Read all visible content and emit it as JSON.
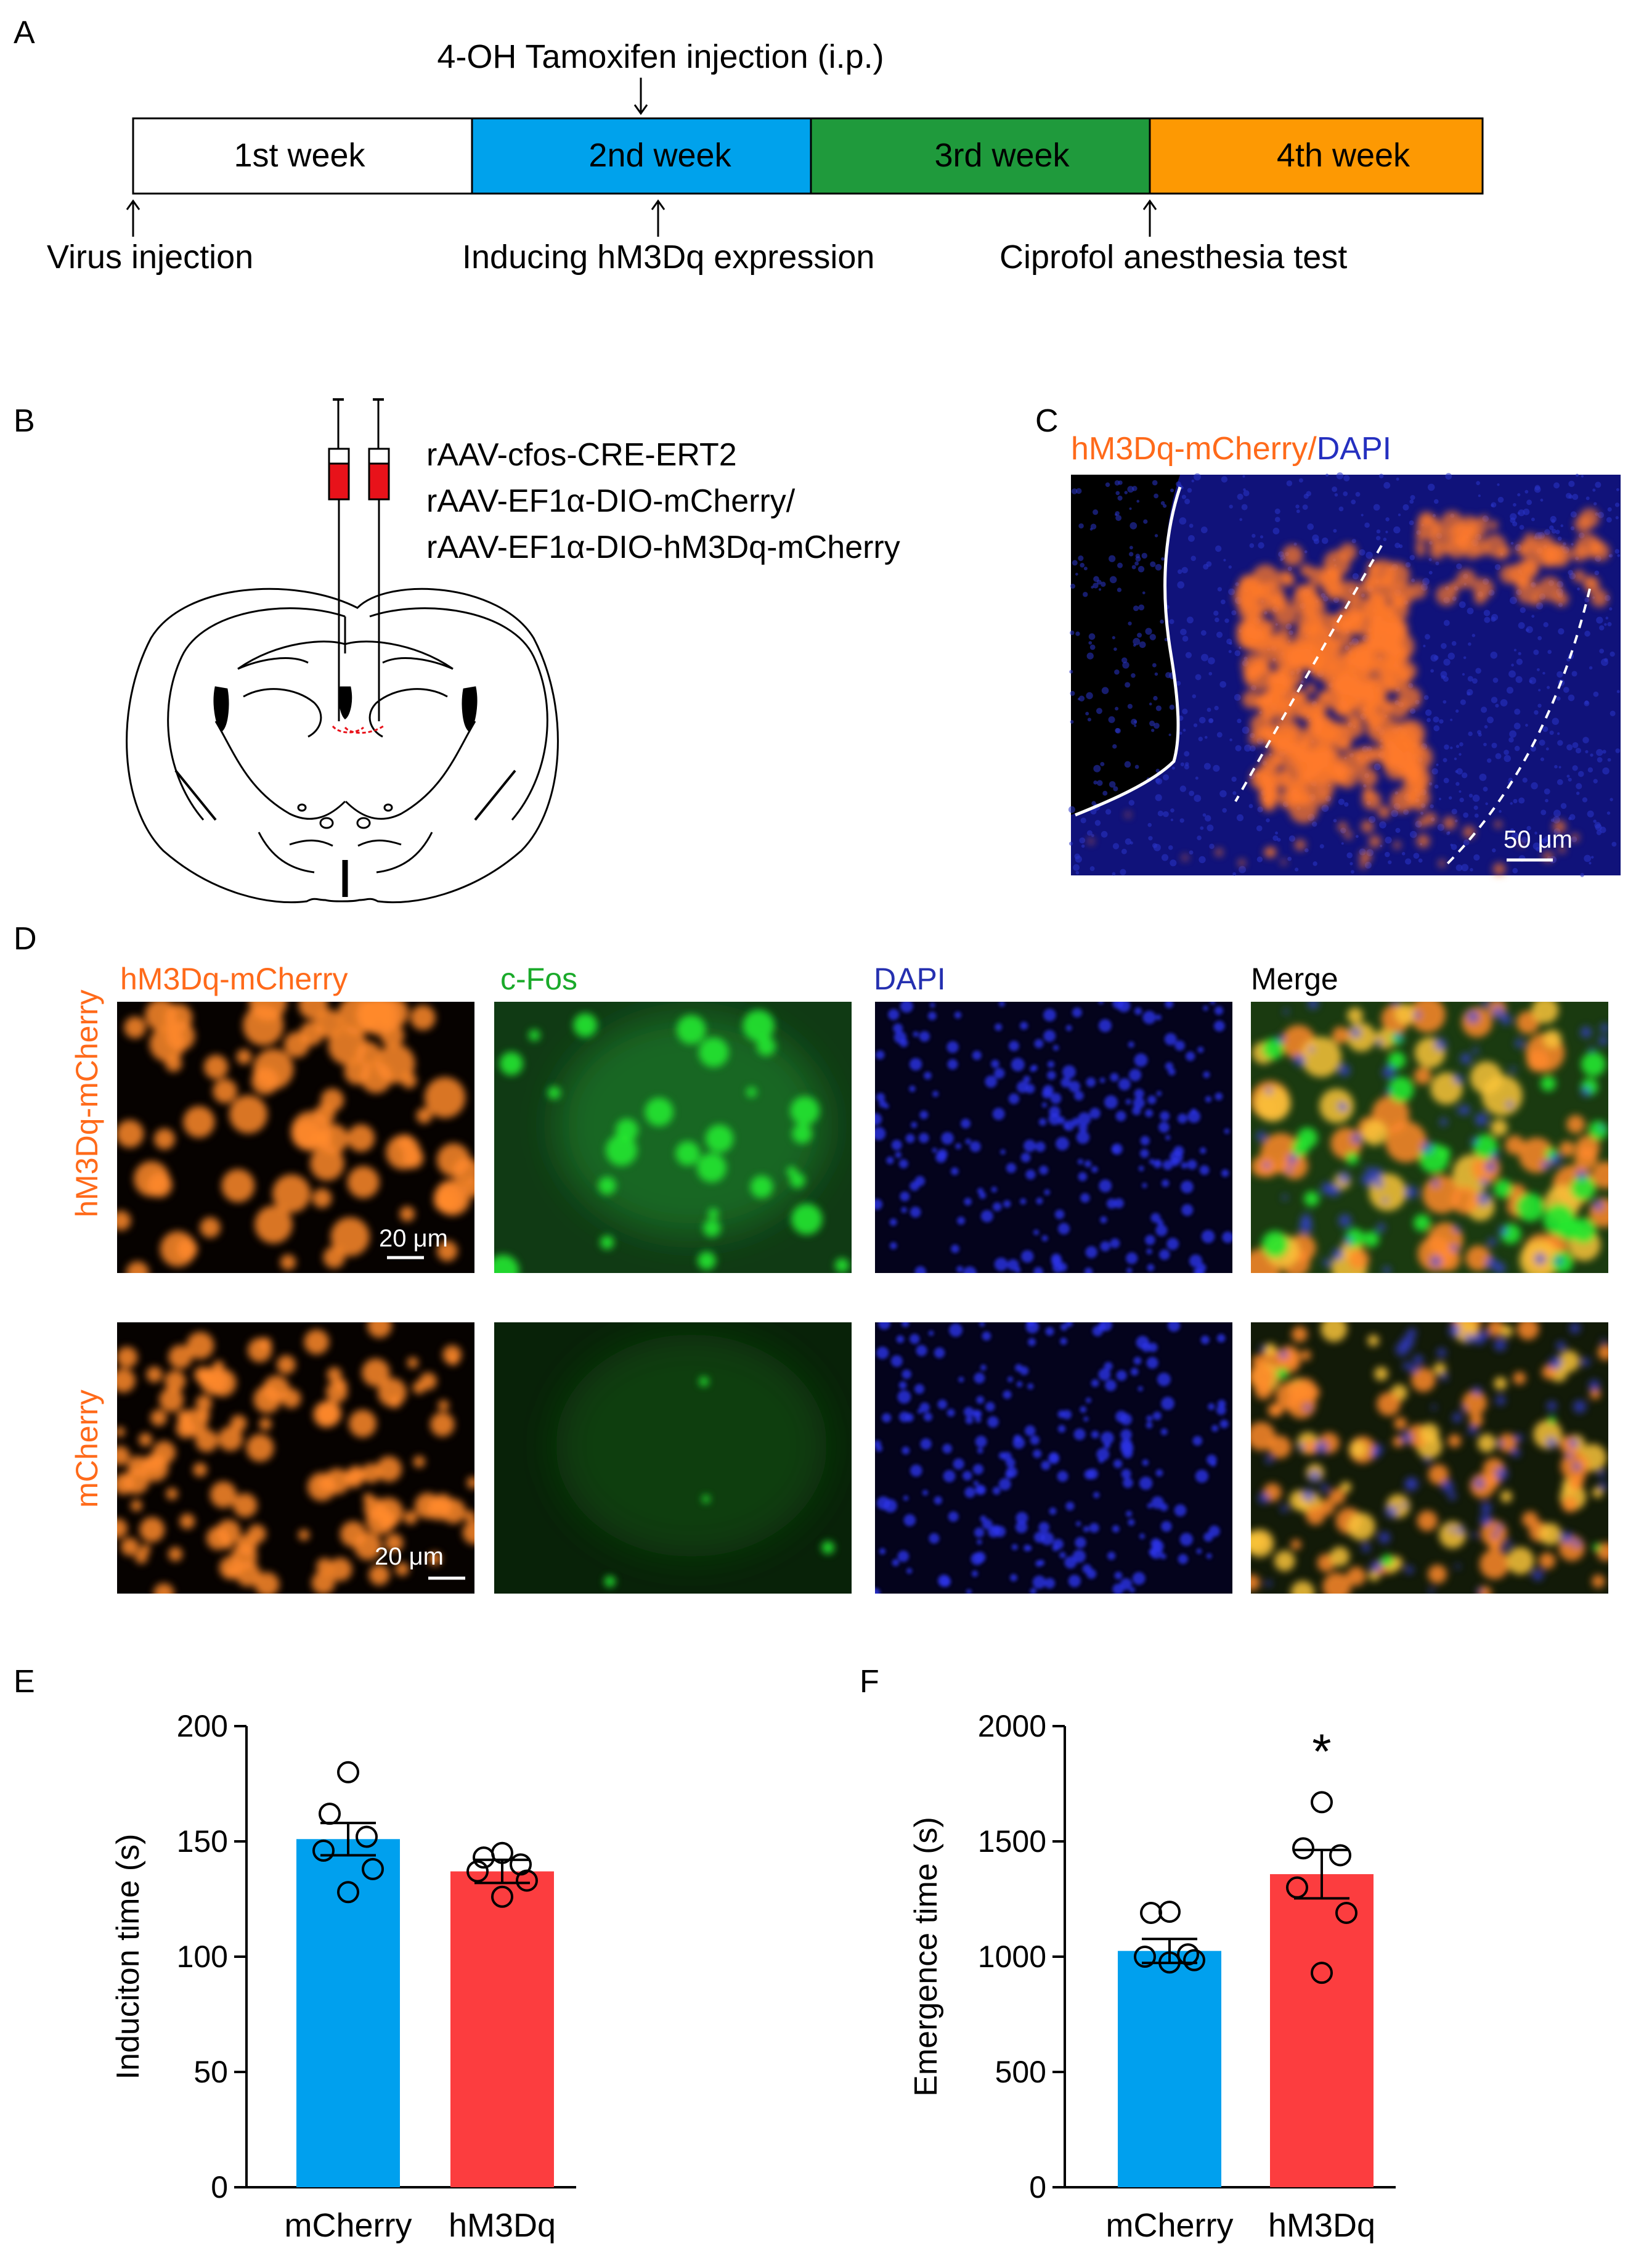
{
  "panels": {
    "A": "A",
    "B": "B",
    "C": "C",
    "D": "D",
    "E": "E",
    "F": "F"
  },
  "timeline": {
    "weeks": [
      "1st week",
      "2nd week",
      "3rd week",
      "4th week"
    ],
    "week_colors": [
      "#ffffff",
      "#00a2ec",
      "#1f9a3c",
      "#fd9903"
    ],
    "top_annotation": "4-OH Tamoxifen injection (i.p.)",
    "bottom_annotations": [
      "Virus injection",
      "Inducing hM3Dq expression",
      "Ciprofol anesthesia test"
    ]
  },
  "injection": {
    "lines": [
      "rAAV-cfos-CRE-ERT2",
      "rAAV-EF1α-DIO-mCherry/",
      "rAAV-EF1α-DIO-hM3Dq-mCherry"
    ]
  },
  "panel_c": {
    "label_orange": "hM3Dq-mCherry",
    "label_slash": "/",
    "label_blue": "DAPI",
    "scale_bar": "50 μm"
  },
  "panel_d": {
    "columns": [
      "hM3Dq-mCherry",
      "c-Fos",
      "DAPI",
      "Merge"
    ],
    "column_colors": [
      "#ff6a1a",
      "#1aaa2a",
      "#2530b0",
      "#000000"
    ],
    "rows": [
      "hM3Dq-mCherry",
      "mCherry"
    ],
    "scale_bar": "20 μm"
  },
  "colors": {
    "mcherry_bar": "#00a0ee",
    "hm3dq_bar": "#fc3d3f",
    "orange_label": "#ff6a1a"
  },
  "chart_data": [
    {
      "type": "bar",
      "panel": "E",
      "categories": [
        "mCherry",
        "hM3Dq"
      ],
      "values": [
        151,
        137
      ],
      "sem": [
        7,
        5
      ],
      "points": [
        [
          180,
          162,
          152,
          146,
          138,
          128
        ],
        [
          145,
          143,
          140,
          137,
          133,
          126
        ]
      ],
      "ylabel": "Induciton time (s)",
      "ylim": [
        0,
        200
      ],
      "yticks": [
        0,
        50,
        100,
        150,
        200
      ],
      "significance": ""
    },
    {
      "type": "bar",
      "panel": "F",
      "categories": [
        "mCherry",
        "hM3Dq"
      ],
      "values": [
        1025,
        1358
      ],
      "sem": [
        52,
        105
      ],
      "points": [
        [
          1195,
          1190,
          1010,
          1000,
          985,
          975
        ],
        [
          1670,
          1470,
          1440,
          1300,
          1190,
          930
        ]
      ],
      "ylabel": "Emergence time (s)",
      "ylim": [
        0,
        2000
      ],
      "yticks": [
        0,
        500,
        1000,
        1500,
        2000
      ],
      "significance": "*"
    }
  ]
}
